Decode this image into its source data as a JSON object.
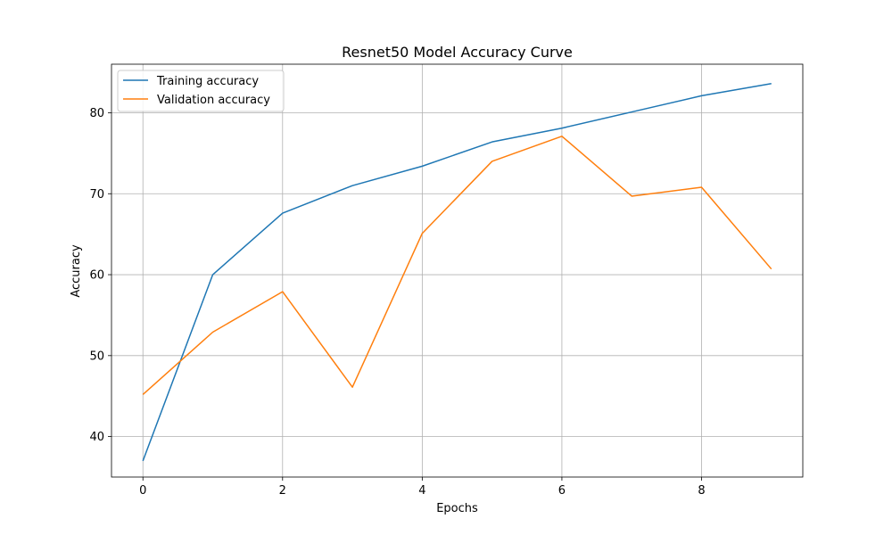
{
  "chart_data": {
    "type": "line",
    "title": "Resnet50 Model Accuracy Curve",
    "xlabel": "Epochs",
    "ylabel": "Accuracy",
    "x": [
      0,
      1,
      2,
      3,
      4,
      5,
      6,
      7,
      8,
      9
    ],
    "xlim": [
      -0.45,
      9.45
    ],
    "ylim": [
      35,
      86
    ],
    "xticks": [
      0,
      2,
      4,
      6,
      8
    ],
    "yticks": [
      40,
      50,
      60,
      70,
      80
    ],
    "grid": true,
    "legend_position": "upper-left",
    "series": [
      {
        "name": "Training accuracy",
        "color": "#1f77b4",
        "values": [
          37.0,
          60.0,
          67.6,
          71.0,
          73.4,
          76.4,
          78.1,
          80.1,
          82.1,
          83.6
        ]
      },
      {
        "name": "Validation accuracy",
        "color": "#ff7f0e",
        "values": [
          45.2,
          52.9,
          57.9,
          46.1,
          65.1,
          74.0,
          77.1,
          69.7,
          70.8,
          60.7
        ]
      }
    ]
  }
}
